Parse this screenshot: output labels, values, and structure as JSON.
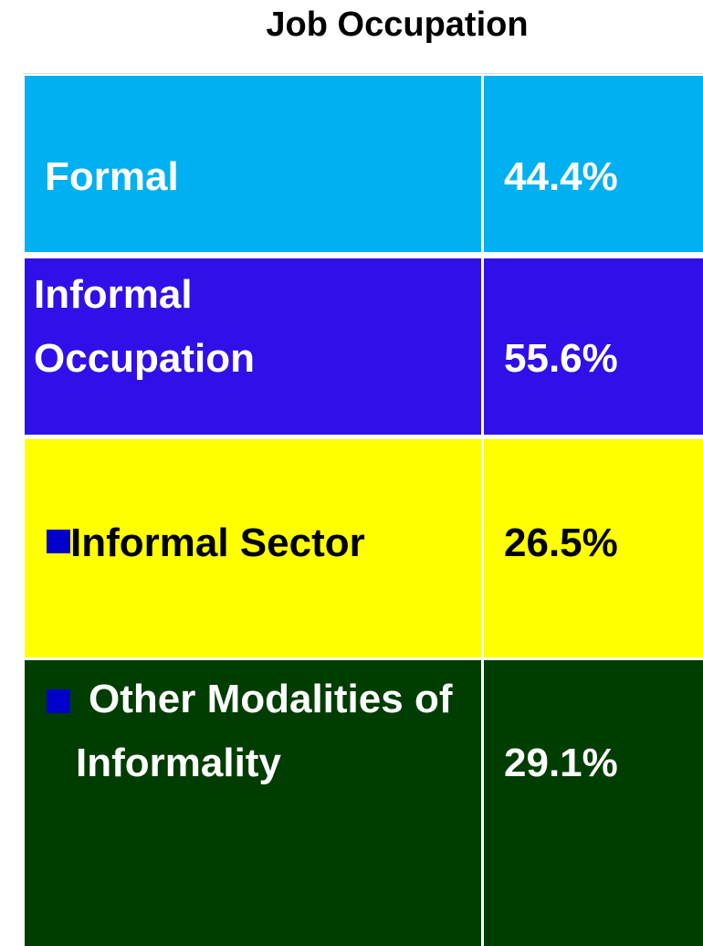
{
  "title": "Job Occupation",
  "table": {
    "rows": [
      [
        "Formal",
        "44.4%"
      ],
      [
        "Informal Occupation",
        "55.6%"
      ],
      [
        "Informal Sector",
        "26.5%"
      ],
      [
        "Other Modalities of Informality",
        "29.1%"
      ]
    ]
  }
}
